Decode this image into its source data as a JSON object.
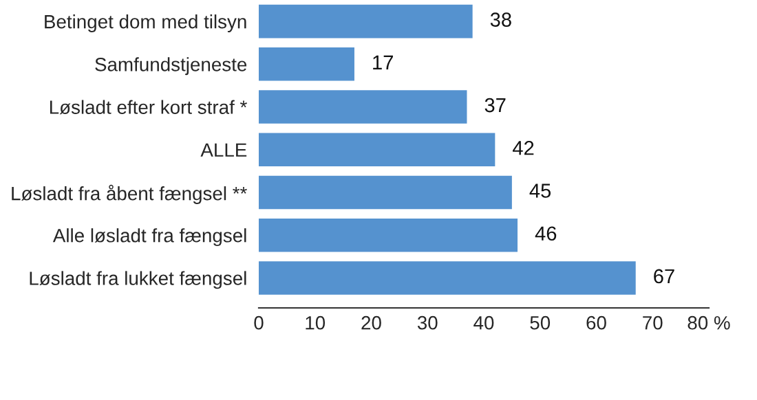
{
  "chart_data": {
    "type": "bar",
    "orientation": "horizontal",
    "categories": [
      "Betinget dom med tilsyn",
      "Samfundstjeneste",
      "Løsladt efter kort straf *",
      "ALLE",
      "Løsladt fra åbent fængsel **",
      "Alle løsladt fra fængsel",
      "Løsladt fra lukket fængsel"
    ],
    "values": [
      38,
      17,
      37,
      42,
      45,
      46,
      67
    ],
    "color": "#5592cf",
    "xlim": [
      0,
      80
    ],
    "xticks": [
      0,
      10,
      20,
      30,
      40,
      50,
      60,
      70,
      {
        "value": 80,
        "label": "80 %"
      }
    ],
    "data_labels": true,
    "grid": false,
    "legend": false
  }
}
